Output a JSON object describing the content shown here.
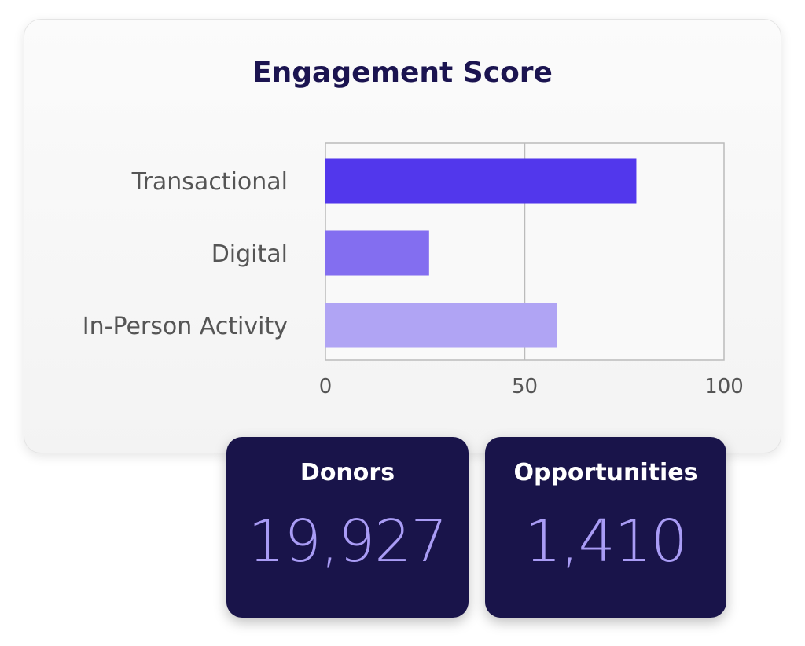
{
  "chart_data": {
    "type": "bar",
    "orientation": "horizontal",
    "title": "Engagement Score",
    "categories": [
      "Transactional",
      "Digital",
      "In-Person Activity"
    ],
    "values": [
      78,
      26,
      58
    ],
    "colors": [
      "#5237ec",
      "#836ef0",
      "#b0a4f4"
    ],
    "xlim": [
      0,
      100
    ],
    "xticks": [
      "0",
      "50",
      "100"
    ],
    "grid": "vertical at 50",
    "legend": "none"
  },
  "stats": {
    "donors": {
      "label": "Donors",
      "value": "19,927"
    },
    "opportunities": {
      "label": "Opportunities",
      "value": "1,410"
    }
  },
  "theme": {
    "card_background": "#19144a",
    "stat_value_color": "#a99cf5",
    "title_color": "#1b1450"
  }
}
